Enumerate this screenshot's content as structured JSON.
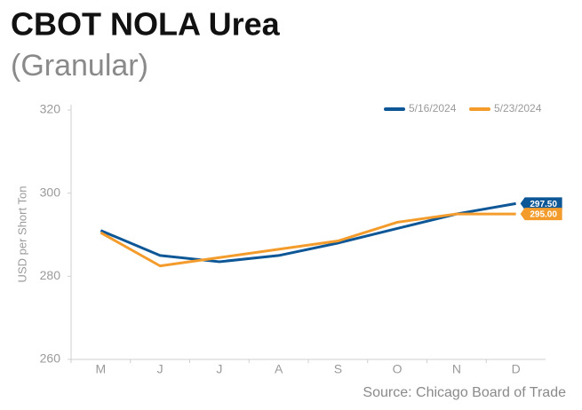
{
  "chart_data": {
    "type": "line",
    "title": "CBOT NOLA Urea",
    "subtitle": "(Granular)",
    "y_label": "USD per Short Ton",
    "source": "Source: Chicago Board of Trade",
    "categories": [
      "M",
      "J",
      "J",
      "A",
      "S",
      "O",
      "N",
      "D"
    ],
    "series": [
      {
        "name": "5/16/2024",
        "color": "#0e5797",
        "values": [
          291,
          285,
          283.5,
          285,
          288,
          291.5,
          295,
          297.5
        ],
        "value_labels": [
          null,
          null,
          null,
          null,
          null,
          null,
          null,
          "297.50"
        ]
      },
      {
        "name": "5/23/2024",
        "color": "#f39c2c",
        "values": [
          290.5,
          282.5,
          284.5,
          286.5,
          288.5,
          293,
          295,
          295
        ],
        "value_labels": [
          null,
          null,
          null,
          null,
          null,
          null,
          null,
          "295.00"
        ]
      }
    ],
    "ylim": [
      260,
      320
    ],
    "yticks": [
      260,
      280,
      300,
      320
    ],
    "grid": false,
    "legend": "top-right"
  }
}
